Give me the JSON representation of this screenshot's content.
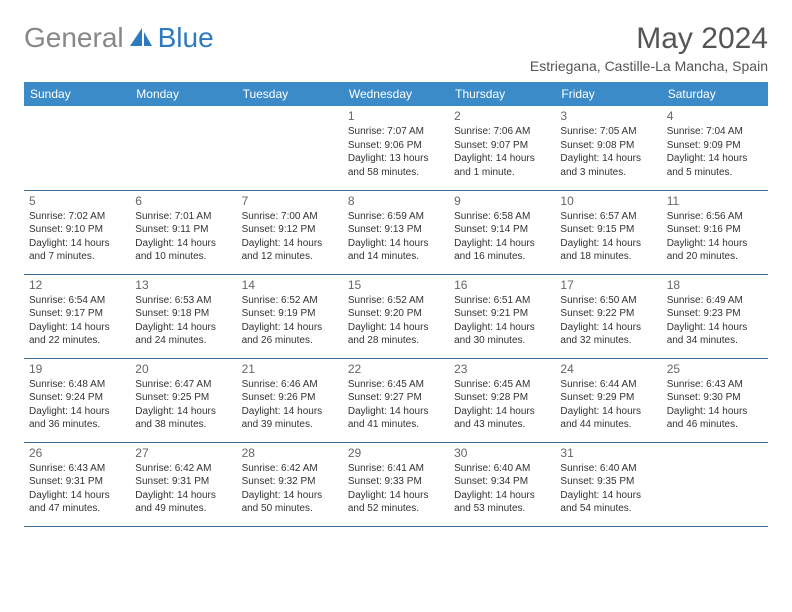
{
  "brand": {
    "name1": "General",
    "name2": "Blue"
  },
  "title": "May 2024",
  "location": "Estriegana, Castille-La Mancha, Spain",
  "colors": {
    "header_bg": "#3b8bc9",
    "header_fg": "#ffffff",
    "row_border": "#3b6a94",
    "brand_gray": "#888888",
    "brand_blue": "#2e7ac0",
    "text": "#333333"
  },
  "weekdays": [
    "Sunday",
    "Monday",
    "Tuesday",
    "Wednesday",
    "Thursday",
    "Friday",
    "Saturday"
  ],
  "weeks": [
    [
      null,
      null,
      null,
      {
        "n": "1",
        "sunrise": "7:07 AM",
        "sunset": "9:06 PM",
        "daylight": "13 hours and 58 minutes."
      },
      {
        "n": "2",
        "sunrise": "7:06 AM",
        "sunset": "9:07 PM",
        "daylight": "14 hours and 1 minute."
      },
      {
        "n": "3",
        "sunrise": "7:05 AM",
        "sunset": "9:08 PM",
        "daylight": "14 hours and 3 minutes."
      },
      {
        "n": "4",
        "sunrise": "7:04 AM",
        "sunset": "9:09 PM",
        "daylight": "14 hours and 5 minutes."
      }
    ],
    [
      {
        "n": "5",
        "sunrise": "7:02 AM",
        "sunset": "9:10 PM",
        "daylight": "14 hours and 7 minutes."
      },
      {
        "n": "6",
        "sunrise": "7:01 AM",
        "sunset": "9:11 PM",
        "daylight": "14 hours and 10 minutes."
      },
      {
        "n": "7",
        "sunrise": "7:00 AM",
        "sunset": "9:12 PM",
        "daylight": "14 hours and 12 minutes."
      },
      {
        "n": "8",
        "sunrise": "6:59 AM",
        "sunset": "9:13 PM",
        "daylight": "14 hours and 14 minutes."
      },
      {
        "n": "9",
        "sunrise": "6:58 AM",
        "sunset": "9:14 PM",
        "daylight": "14 hours and 16 minutes."
      },
      {
        "n": "10",
        "sunrise": "6:57 AM",
        "sunset": "9:15 PM",
        "daylight": "14 hours and 18 minutes."
      },
      {
        "n": "11",
        "sunrise": "6:56 AM",
        "sunset": "9:16 PM",
        "daylight": "14 hours and 20 minutes."
      }
    ],
    [
      {
        "n": "12",
        "sunrise": "6:54 AM",
        "sunset": "9:17 PM",
        "daylight": "14 hours and 22 minutes."
      },
      {
        "n": "13",
        "sunrise": "6:53 AM",
        "sunset": "9:18 PM",
        "daylight": "14 hours and 24 minutes."
      },
      {
        "n": "14",
        "sunrise": "6:52 AM",
        "sunset": "9:19 PM",
        "daylight": "14 hours and 26 minutes."
      },
      {
        "n": "15",
        "sunrise": "6:52 AM",
        "sunset": "9:20 PM",
        "daylight": "14 hours and 28 minutes."
      },
      {
        "n": "16",
        "sunrise": "6:51 AM",
        "sunset": "9:21 PM",
        "daylight": "14 hours and 30 minutes."
      },
      {
        "n": "17",
        "sunrise": "6:50 AM",
        "sunset": "9:22 PM",
        "daylight": "14 hours and 32 minutes."
      },
      {
        "n": "18",
        "sunrise": "6:49 AM",
        "sunset": "9:23 PM",
        "daylight": "14 hours and 34 minutes."
      }
    ],
    [
      {
        "n": "19",
        "sunrise": "6:48 AM",
        "sunset": "9:24 PM",
        "daylight": "14 hours and 36 minutes."
      },
      {
        "n": "20",
        "sunrise": "6:47 AM",
        "sunset": "9:25 PM",
        "daylight": "14 hours and 38 minutes."
      },
      {
        "n": "21",
        "sunrise": "6:46 AM",
        "sunset": "9:26 PM",
        "daylight": "14 hours and 39 minutes."
      },
      {
        "n": "22",
        "sunrise": "6:45 AM",
        "sunset": "9:27 PM",
        "daylight": "14 hours and 41 minutes."
      },
      {
        "n": "23",
        "sunrise": "6:45 AM",
        "sunset": "9:28 PM",
        "daylight": "14 hours and 43 minutes."
      },
      {
        "n": "24",
        "sunrise": "6:44 AM",
        "sunset": "9:29 PM",
        "daylight": "14 hours and 44 minutes."
      },
      {
        "n": "25",
        "sunrise": "6:43 AM",
        "sunset": "9:30 PM",
        "daylight": "14 hours and 46 minutes."
      }
    ],
    [
      {
        "n": "26",
        "sunrise": "6:43 AM",
        "sunset": "9:31 PM",
        "daylight": "14 hours and 47 minutes."
      },
      {
        "n": "27",
        "sunrise": "6:42 AM",
        "sunset": "9:31 PM",
        "daylight": "14 hours and 49 minutes."
      },
      {
        "n": "28",
        "sunrise": "6:42 AM",
        "sunset": "9:32 PM",
        "daylight": "14 hours and 50 minutes."
      },
      {
        "n": "29",
        "sunrise": "6:41 AM",
        "sunset": "9:33 PM",
        "daylight": "14 hours and 52 minutes."
      },
      {
        "n": "30",
        "sunrise": "6:40 AM",
        "sunset": "9:34 PM",
        "daylight": "14 hours and 53 minutes."
      },
      {
        "n": "31",
        "sunrise": "6:40 AM",
        "sunset": "9:35 PM",
        "daylight": "14 hours and 54 minutes."
      },
      null
    ]
  ]
}
